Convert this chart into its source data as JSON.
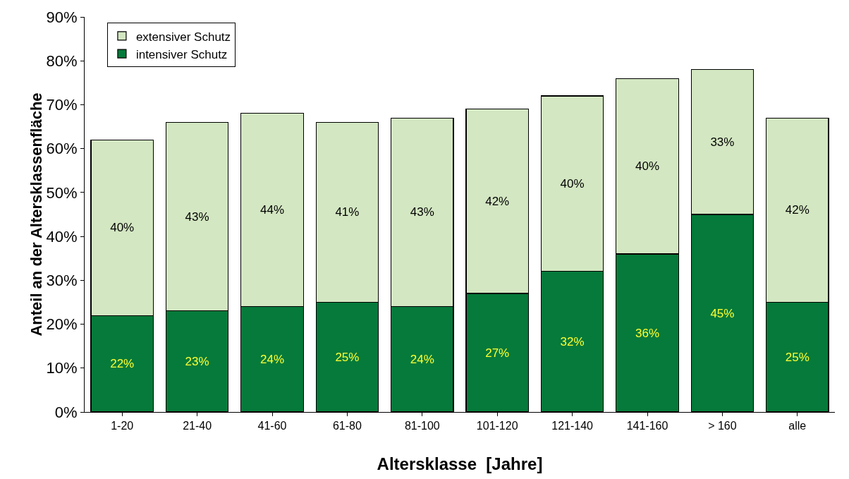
{
  "chart_data": {
    "type": "bar",
    "stacked": true,
    "xlabel": "Altersklasse  [Jahre]",
    "ylabel": "Anteil an der Altersklassenfläche",
    "categories": [
      "1-20",
      "21-40",
      "41-60",
      "61-80",
      "81-100",
      "101-120",
      "121-140",
      "141-160",
      "> 160",
      "alle"
    ],
    "series": [
      {
        "name": "intensiver Schutz",
        "color": "#057a3a",
        "values": [
          22,
          23,
          24,
          25,
          24,
          27,
          32,
          36,
          45,
          25
        ],
        "value_labels": [
          "22%",
          "23%",
          "24%",
          "25%",
          "24%",
          "27%",
          "32%",
          "36%",
          "45%",
          "25%"
        ]
      },
      {
        "name": "extensiver Schutz",
        "color": "#d3e7c2",
        "values": [
          40,
          43,
          44,
          41,
          43,
          42,
          40,
          40,
          33,
          42
        ],
        "value_labels": [
          "40%",
          "43%",
          "44%",
          "41%",
          "43%",
          "42%",
          "40%",
          "40%",
          "33%",
          "42%"
        ]
      }
    ],
    "ylim": [
      0,
      90
    ],
    "yticks": [
      {
        "value": 0,
        "label": "0%"
      },
      {
        "value": 10,
        "label": "10%"
      },
      {
        "value": 20,
        "label": "20%"
      },
      {
        "value": 30,
        "label": "30%"
      },
      {
        "value": 40,
        "label": "40%"
      },
      {
        "value": 50,
        "label": "50%"
      },
      {
        "value": 60,
        "label": "60%"
      },
      {
        "value": 70,
        "label": "70%"
      },
      {
        "value": 80,
        "label": "80%"
      },
      {
        "value": 90,
        "label": "90%"
      }
    ],
    "grid": false,
    "legend": "top left"
  }
}
